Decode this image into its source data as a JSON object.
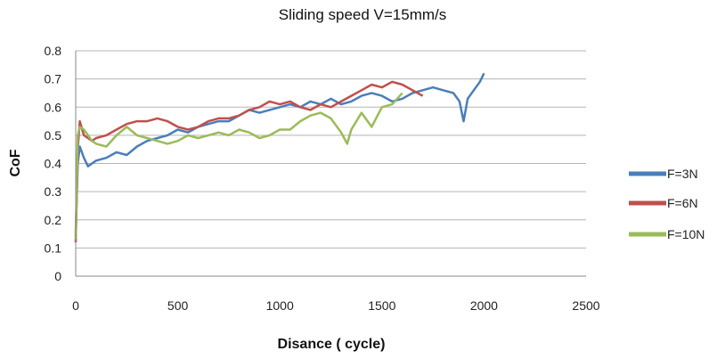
{
  "chart_data": {
    "type": "line",
    "title": "Sliding speed V=15mm/s",
    "xlabel": "Disance ( cycle)",
    "ylabel": "CoF",
    "xlim": [
      0,
      2500
    ],
    "ylim": [
      0,
      0.8
    ],
    "xticks": [
      "0",
      "500",
      "1000",
      "1500",
      "2000",
      "2500"
    ],
    "yticks": [
      "0",
      "0.1",
      "0.2",
      "0.3",
      "0.4",
      "0.5",
      "0.6",
      "0.7",
      "0.8"
    ],
    "grid": "horizontal",
    "legend": "right",
    "series": [
      {
        "name": "F=3N",
        "color": "#4a7ebb",
        "x": [
          0,
          10,
          20,
          40,
          60,
          80,
          100,
          150,
          200,
          250,
          300,
          350,
          400,
          450,
          500,
          550,
          600,
          650,
          700,
          750,
          800,
          850,
          900,
          950,
          1000,
          1050,
          1100,
          1150,
          1200,
          1250,
          1300,
          1350,
          1400,
          1450,
          1500,
          1550,
          1600,
          1650,
          1700,
          1750,
          1800,
          1850,
          1880,
          1900,
          1920,
          1950,
          1980,
          2000
        ],
        "y": [
          0.15,
          0.4,
          0.46,
          0.42,
          0.39,
          0.4,
          0.41,
          0.42,
          0.44,
          0.43,
          0.46,
          0.48,
          0.49,
          0.5,
          0.52,
          0.51,
          0.53,
          0.54,
          0.55,
          0.55,
          0.57,
          0.59,
          0.58,
          0.59,
          0.6,
          0.61,
          0.6,
          0.62,
          0.61,
          0.63,
          0.61,
          0.62,
          0.64,
          0.65,
          0.64,
          0.62,
          0.63,
          0.65,
          0.66,
          0.67,
          0.66,
          0.65,
          0.62,
          0.55,
          0.63,
          0.66,
          0.69,
          0.72
        ]
      },
      {
        "name": "F=6N",
        "color": "#c0504d",
        "x": [
          0,
          10,
          20,
          40,
          60,
          80,
          100,
          150,
          200,
          250,
          300,
          350,
          400,
          450,
          500,
          550,
          600,
          650,
          700,
          750,
          800,
          850,
          900,
          950,
          1000,
          1050,
          1100,
          1150,
          1200,
          1250,
          1300,
          1350,
          1400,
          1450,
          1500,
          1550,
          1600,
          1650,
          1700
        ],
        "y": [
          0.12,
          0.45,
          0.55,
          0.5,
          0.49,
          0.48,
          0.49,
          0.5,
          0.52,
          0.54,
          0.55,
          0.55,
          0.56,
          0.55,
          0.53,
          0.52,
          0.53,
          0.55,
          0.56,
          0.56,
          0.57,
          0.59,
          0.6,
          0.62,
          0.61,
          0.62,
          0.6,
          0.59,
          0.61,
          0.6,
          0.62,
          0.64,
          0.66,
          0.68,
          0.67,
          0.69,
          0.68,
          0.66,
          0.64
        ]
      },
      {
        "name": "F=10N",
        "color": "#9bbb59",
        "x": [
          0,
          10,
          20,
          40,
          60,
          80,
          100,
          150,
          200,
          250,
          300,
          350,
          400,
          450,
          500,
          550,
          600,
          650,
          700,
          750,
          800,
          850,
          900,
          950,
          1000,
          1050,
          1100,
          1150,
          1200,
          1250,
          1300,
          1330,
          1350,
          1400,
          1450,
          1500,
          1550,
          1600
        ],
        "y": [
          0.13,
          0.5,
          0.53,
          0.52,
          0.5,
          0.48,
          0.47,
          0.46,
          0.5,
          0.53,
          0.5,
          0.49,
          0.48,
          0.47,
          0.48,
          0.5,
          0.49,
          0.5,
          0.51,
          0.5,
          0.52,
          0.51,
          0.49,
          0.5,
          0.52,
          0.52,
          0.55,
          0.57,
          0.58,
          0.56,
          0.51,
          0.47,
          0.52,
          0.58,
          0.53,
          0.6,
          0.61,
          0.65
        ]
      }
    ]
  }
}
